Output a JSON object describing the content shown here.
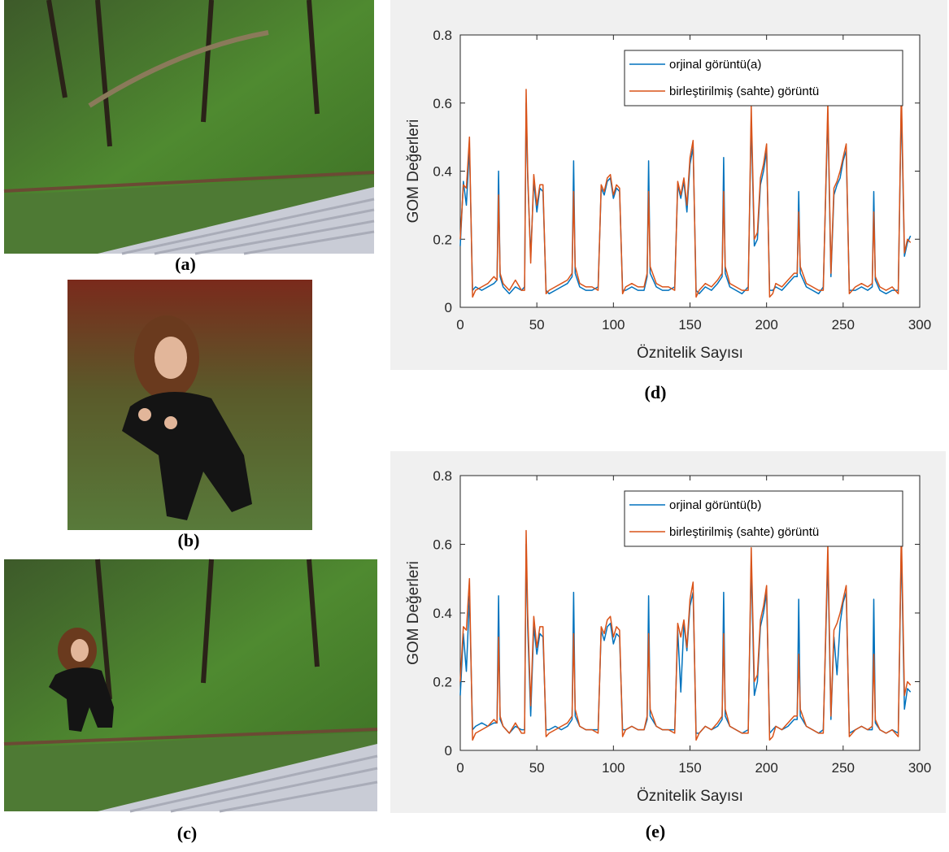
{
  "figure": {
    "captions": [
      "(a)",
      "(b)",
      "(c)"
    ]
  },
  "chart_data": [
    {
      "type": "line",
      "caption": "(d)",
      "xlabel": "Öznitelik Sayısı",
      "ylabel": "GOM Değerleri",
      "xlim": [
        0,
        300
      ],
      "ylim": [
        0,
        0.8
      ],
      "xticks": [
        0,
        50,
        100,
        150,
        200,
        250,
        300
      ],
      "yticks": [
        0,
        0.2,
        0.4,
        0.6,
        0.8
      ],
      "legend": "upper right",
      "grid": false,
      "x": [
        0,
        2,
        4,
        6,
        8,
        10,
        14,
        18,
        22,
        24,
        25,
        26,
        28,
        32,
        36,
        40,
        42,
        43,
        44,
        46,
        48,
        50,
        52,
        54,
        56,
        58,
        62,
        66,
        70,
        73,
        74,
        75,
        78,
        82,
        86,
        90,
        92,
        94,
        96,
        98,
        100,
        102,
        104,
        106,
        108,
        112,
        116,
        120,
        122,
        123,
        124,
        128,
        132,
        136,
        140,
        142,
        144,
        146,
        148,
        150,
        152,
        154,
        156,
        160,
        164,
        168,
        171,
        172,
        173,
        176,
        180,
        184,
        188,
        190,
        192,
        194,
        196,
        198,
        200,
        202,
        204,
        206,
        210,
        214,
        218,
        220,
        221,
        222,
        226,
        230,
        234,
        237,
        240,
        242,
        244,
        246,
        248,
        250,
        252,
        254,
        258,
        262,
        266,
        269,
        270,
        271,
        274,
        278,
        282,
        286,
        288,
        290,
        292,
        294
      ],
      "series": [
        {
          "name": "orjinal görüntü(a)",
          "color": "#0072bd",
          "values": [
            0.18,
            0.37,
            0.3,
            0.47,
            0.05,
            0.06,
            0.05,
            0.06,
            0.07,
            0.08,
            0.4,
            0.09,
            0.06,
            0.04,
            0.06,
            0.05,
            0.06,
            0.6,
            0.38,
            0.15,
            0.37,
            0.28,
            0.35,
            0.34,
            0.05,
            0.04,
            0.05,
            0.06,
            0.07,
            0.09,
            0.43,
            0.1,
            0.06,
            0.05,
            0.05,
            0.06,
            0.35,
            0.33,
            0.37,
            0.38,
            0.32,
            0.35,
            0.34,
            0.05,
            0.05,
            0.06,
            0.05,
            0.05,
            0.09,
            0.43,
            0.1,
            0.06,
            0.05,
            0.05,
            0.06,
            0.36,
            0.32,
            0.37,
            0.28,
            0.42,
            0.47,
            0.05,
            0.04,
            0.06,
            0.05,
            0.07,
            0.09,
            0.44,
            0.1,
            0.06,
            0.05,
            0.04,
            0.06,
            0.55,
            0.18,
            0.2,
            0.36,
            0.4,
            0.46,
            0.05,
            0.05,
            0.06,
            0.05,
            0.07,
            0.09,
            0.09,
            0.34,
            0.1,
            0.06,
            0.05,
            0.04,
            0.06,
            0.57,
            0.09,
            0.33,
            0.36,
            0.38,
            0.43,
            0.46,
            0.05,
            0.05,
            0.06,
            0.05,
            0.06,
            0.34,
            0.08,
            0.05,
            0.04,
            0.05,
            0.05,
            0.6,
            0.15,
            0.19,
            0.21
          ]
        },
        {
          "name": "birleştirilmiş (sahte) görüntü",
          "color": "#d95319",
          "values": [
            0.2,
            0.36,
            0.35,
            0.5,
            0.03,
            0.05,
            0.06,
            0.07,
            0.09,
            0.08,
            0.33,
            0.1,
            0.07,
            0.05,
            0.08,
            0.05,
            0.05,
            0.64,
            0.4,
            0.13,
            0.39,
            0.3,
            0.36,
            0.36,
            0.04,
            0.05,
            0.06,
            0.07,
            0.08,
            0.1,
            0.34,
            0.12,
            0.07,
            0.06,
            0.06,
            0.05,
            0.36,
            0.34,
            0.38,
            0.39,
            0.33,
            0.36,
            0.35,
            0.04,
            0.06,
            0.07,
            0.06,
            0.06,
            0.1,
            0.34,
            0.12,
            0.07,
            0.06,
            0.06,
            0.05,
            0.37,
            0.33,
            0.38,
            0.3,
            0.44,
            0.49,
            0.03,
            0.05,
            0.07,
            0.06,
            0.08,
            0.1,
            0.34,
            0.12,
            0.07,
            0.06,
            0.05,
            0.05,
            0.59,
            0.2,
            0.22,
            0.38,
            0.42,
            0.48,
            0.03,
            0.04,
            0.07,
            0.06,
            0.08,
            0.1,
            0.1,
            0.28,
            0.12,
            0.07,
            0.06,
            0.05,
            0.05,
            0.6,
            0.1,
            0.35,
            0.37,
            0.4,
            0.44,
            0.48,
            0.04,
            0.06,
            0.07,
            0.06,
            0.07,
            0.28,
            0.09,
            0.06,
            0.05,
            0.06,
            0.04,
            0.64,
            0.16,
            0.2,
            0.19
          ]
        }
      ]
    },
    {
      "type": "line",
      "caption": "(e)",
      "xlabel": "Öznitelik Sayısı",
      "ylabel": "GOM Değerleri",
      "xlim": [
        0,
        300
      ],
      "ylim": [
        0,
        0.8
      ],
      "xticks": [
        0,
        50,
        100,
        150,
        200,
        250,
        300
      ],
      "yticks": [
        0,
        0.2,
        0.4,
        0.6,
        0.8
      ],
      "legend": "upper right",
      "grid": false,
      "x": [
        0,
        2,
        4,
        6,
        8,
        10,
        14,
        18,
        22,
        24,
        25,
        26,
        28,
        32,
        36,
        40,
        42,
        43,
        44,
        46,
        48,
        50,
        52,
        54,
        56,
        58,
        62,
        66,
        70,
        73,
        74,
        75,
        78,
        82,
        86,
        90,
        92,
        94,
        96,
        98,
        100,
        102,
        104,
        106,
        108,
        112,
        116,
        120,
        122,
        123,
        124,
        128,
        132,
        136,
        140,
        142,
        144,
        146,
        148,
        150,
        152,
        154,
        156,
        160,
        164,
        168,
        171,
        172,
        173,
        176,
        180,
        184,
        188,
        190,
        192,
        194,
        196,
        198,
        200,
        202,
        204,
        206,
        210,
        214,
        218,
        220,
        221,
        222,
        226,
        230,
        234,
        237,
        240,
        242,
        244,
        246,
        248,
        250,
        252,
        254,
        258,
        262,
        266,
        269,
        270,
        271,
        274,
        278,
        282,
        286,
        288,
        290,
        292,
        294
      ],
      "series": [
        {
          "name": "orjinal görüntü(b)",
          "color": "#0072bd",
          "values": [
            0.16,
            0.34,
            0.23,
            0.45,
            0.06,
            0.07,
            0.08,
            0.07,
            0.08,
            0.08,
            0.45,
            0.09,
            0.07,
            0.05,
            0.07,
            0.06,
            0.06,
            0.6,
            0.36,
            0.1,
            0.36,
            0.28,
            0.34,
            0.33,
            0.06,
            0.06,
            0.07,
            0.06,
            0.07,
            0.09,
            0.46,
            0.1,
            0.07,
            0.06,
            0.06,
            0.06,
            0.35,
            0.32,
            0.36,
            0.37,
            0.31,
            0.34,
            0.33,
            0.06,
            0.06,
            0.07,
            0.06,
            0.06,
            0.09,
            0.45,
            0.1,
            0.07,
            0.06,
            0.06,
            0.06,
            0.35,
            0.17,
            0.37,
            0.29,
            0.42,
            0.46,
            0.05,
            0.05,
            0.07,
            0.06,
            0.07,
            0.09,
            0.46,
            0.1,
            0.07,
            0.06,
            0.05,
            0.06,
            0.55,
            0.16,
            0.2,
            0.36,
            0.4,
            0.46,
            0.05,
            0.06,
            0.07,
            0.06,
            0.07,
            0.09,
            0.09,
            0.44,
            0.1,
            0.07,
            0.06,
            0.05,
            0.06,
            0.56,
            0.09,
            0.33,
            0.22,
            0.37,
            0.43,
            0.46,
            0.05,
            0.06,
            0.07,
            0.06,
            0.06,
            0.44,
            0.08,
            0.06,
            0.05,
            0.06,
            0.05,
            0.6,
            0.12,
            0.18,
            0.17
          ]
        },
        {
          "name": "birleştirilmiş (sahte) görüntü",
          "color": "#d95319",
          "values": [
            0.2,
            0.36,
            0.35,
            0.5,
            0.03,
            0.05,
            0.06,
            0.07,
            0.09,
            0.08,
            0.33,
            0.1,
            0.07,
            0.05,
            0.08,
            0.05,
            0.05,
            0.64,
            0.4,
            0.13,
            0.39,
            0.3,
            0.36,
            0.36,
            0.04,
            0.05,
            0.06,
            0.07,
            0.08,
            0.1,
            0.34,
            0.12,
            0.07,
            0.06,
            0.06,
            0.05,
            0.36,
            0.34,
            0.38,
            0.39,
            0.33,
            0.36,
            0.35,
            0.04,
            0.06,
            0.07,
            0.06,
            0.06,
            0.1,
            0.34,
            0.12,
            0.07,
            0.06,
            0.06,
            0.05,
            0.37,
            0.33,
            0.38,
            0.3,
            0.44,
            0.49,
            0.03,
            0.05,
            0.07,
            0.06,
            0.08,
            0.1,
            0.34,
            0.12,
            0.07,
            0.06,
            0.05,
            0.05,
            0.59,
            0.2,
            0.22,
            0.38,
            0.42,
            0.48,
            0.03,
            0.04,
            0.07,
            0.06,
            0.08,
            0.1,
            0.1,
            0.28,
            0.12,
            0.07,
            0.06,
            0.05,
            0.05,
            0.6,
            0.1,
            0.35,
            0.37,
            0.4,
            0.44,
            0.48,
            0.04,
            0.06,
            0.07,
            0.06,
            0.07,
            0.28,
            0.09,
            0.06,
            0.05,
            0.06,
            0.04,
            0.64,
            0.16,
            0.2,
            0.19
          ]
        }
      ]
    }
  ]
}
